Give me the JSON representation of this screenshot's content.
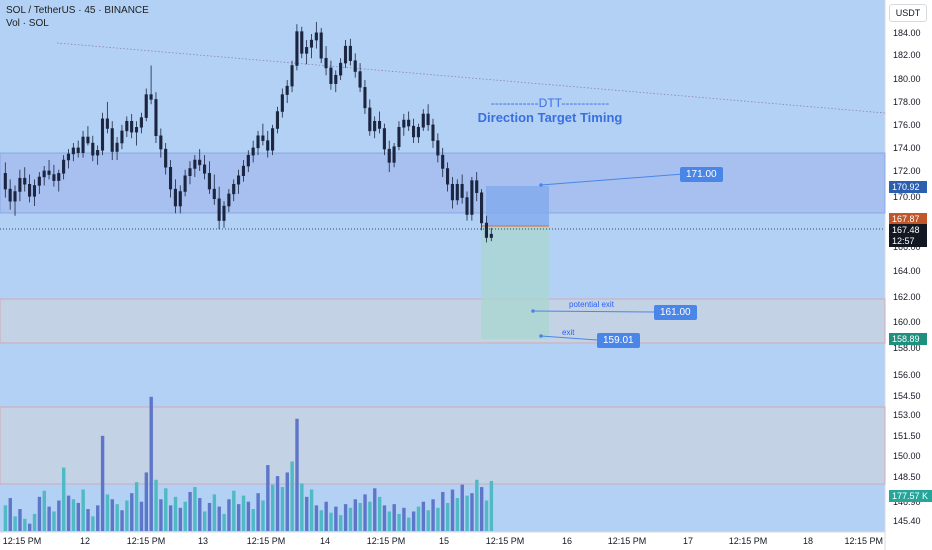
{
  "header": {
    "symbol_line": "SOL / TetherUS · 45 · BINANCE",
    "volume_line": "Vol · SOL",
    "currency": "USDT"
  },
  "annotation": {
    "line1": "------------DTT------------",
    "line2": "Direction Target Timing"
  },
  "targets": {
    "upper": "171.00",
    "potential_exit_label": "potential exit",
    "potential_exit": "161.00",
    "exit_label": "exit",
    "exit": "159.01"
  },
  "price_axis": {
    "labels": [
      "184.00",
      "182.00",
      "180.00",
      "178.00",
      "176.00",
      "174.00",
      "172.00",
      "170.00",
      "166.00",
      "164.00",
      "162.00",
      "160.00",
      "158.00",
      "156.00",
      "154.50",
      "153.00",
      "151.50",
      "150.00",
      "148.50",
      "146.90",
      "145.40"
    ]
  },
  "price_badges": {
    "blue_level": "170.92",
    "orange_level": "167.87",
    "last_price": "167.48",
    "countdown": "12:57",
    "green_level": "158.89",
    "volume": "177.57 K"
  },
  "time_axis": {
    "labels": [
      "12:15 PM",
      "12",
      "12:15 PM",
      "13",
      "12:15 PM",
      "14",
      "12:15 PM",
      "15",
      "12:15 PM",
      "16",
      "12:15 PM",
      "17",
      "12:15 PM",
      "18",
      "12:15 PM"
    ]
  },
  "colors": {
    "background": "#b3d1f5",
    "upper_zone": "#a7c0f0",
    "lower_zone": "#c3d2e5",
    "bull": "#26a69a",
    "bear": "#ef5350",
    "vol_up": "#4fb9c4",
    "vol_down": "#5d76c9",
    "accent": "#4a86e8"
  },
  "chart_data": {
    "type": "candlestick",
    "price_ylim": [
      145.0,
      185.6
    ],
    "price_ticks": [
      184,
      182,
      180,
      178,
      176,
      174,
      172,
      170,
      168,
      166,
      164,
      162,
      160,
      158,
      156
    ],
    "zones": [
      {
        "name": "upper",
        "from": 169.0,
        "to": 173.7
      },
      {
        "name": "lower",
        "from": 158.7,
        "to": 162.0
      },
      {
        "name": "volume",
        "from": 148.4,
        "to": 153.7
      }
    ],
    "position": {
      "entry": 167.87,
      "target": 171.0,
      "stop": 159.01
    },
    "last_price": 167.48,
    "candles": [
      [
        172.5,
        173.4,
        170.5,
        171.2
      ],
      [
        171.2,
        172.0,
        169.5,
        170.2
      ],
      [
        170.2,
        171.5,
        169.0,
        171.0
      ],
      [
        171.0,
        172.8,
        170.2,
        172.1
      ],
      [
        172.1,
        173.0,
        171.0,
        171.6
      ],
      [
        171.6,
        172.4,
        170.1,
        170.6
      ],
      [
        170.6,
        172.0,
        169.8,
        171.5
      ],
      [
        171.5,
        172.6,
        170.8,
        172.2
      ],
      [
        172.2,
        173.1,
        171.5,
        172.7
      ],
      [
        172.7,
        173.6,
        172.0,
        172.4
      ],
      [
        172.4,
        173.2,
        171.4,
        171.9
      ],
      [
        171.9,
        172.8,
        171.0,
        172.5
      ],
      [
        172.5,
        174.0,
        172.0,
        173.6
      ],
      [
        173.6,
        174.5,
        172.9,
        174.1
      ],
      [
        174.1,
        175.0,
        173.5,
        174.6
      ],
      [
        174.6,
        175.2,
        173.8,
        174.2
      ],
      [
        174.2,
        176.0,
        173.8,
        175.5
      ],
      [
        175.5,
        176.4,
        174.8,
        175.0
      ],
      [
        175.0,
        175.6,
        173.5,
        174.0
      ],
      [
        174.0,
        174.8,
        173.2,
        174.4
      ],
      [
        174.4,
        177.5,
        174.0,
        177.0
      ],
      [
        177.0,
        178.4,
        175.8,
        176.2
      ],
      [
        176.2,
        176.8,
        173.6,
        174.3
      ],
      [
        174.3,
        175.5,
        173.6,
        175.0
      ],
      [
        175.0,
        176.5,
        174.5,
        176.0
      ],
      [
        176.0,
        177.2,
        175.5,
        176.8
      ],
      [
        176.8,
        177.4,
        175.4,
        175.9
      ],
      [
        175.9,
        176.8,
        174.8,
        176.3
      ],
      [
        176.3,
        177.5,
        175.8,
        177.1
      ],
      [
        177.1,
        179.5,
        176.8,
        179.0
      ],
      [
        179.0,
        181.4,
        178.2,
        178.6
      ],
      [
        178.6,
        179.2,
        175.0,
        175.6
      ],
      [
        175.6,
        176.2,
        173.8,
        174.5
      ],
      [
        174.5,
        175.0,
        172.4,
        173.0
      ],
      [
        173.0,
        173.6,
        170.5,
        171.2
      ],
      [
        171.2,
        172.0,
        169.2,
        169.8
      ],
      [
        169.8,
        171.5,
        169.2,
        171.0
      ],
      [
        171.0,
        172.8,
        170.6,
        172.3
      ],
      [
        172.3,
        173.5,
        171.6,
        172.9
      ],
      [
        172.9,
        174.0,
        172.2,
        173.6
      ],
      [
        173.6,
        174.5,
        172.7,
        173.2
      ],
      [
        173.2,
        174.0,
        172.0,
        172.5
      ],
      [
        172.5,
        173.5,
        170.8,
        171.2
      ],
      [
        171.2,
        172.4,
        169.9,
        170.4
      ],
      [
        170.4,
        171.4,
        167.9,
        168.6
      ],
      [
        168.6,
        170.2,
        168.0,
        169.8
      ],
      [
        169.8,
        171.2,
        169.3,
        170.8
      ],
      [
        170.8,
        172.0,
        170.2,
        171.6
      ],
      [
        171.6,
        172.8,
        170.8,
        172.3
      ],
      [
        172.3,
        173.6,
        171.8,
        173.1
      ],
      [
        173.1,
        174.4,
        172.6,
        174.0
      ],
      [
        174.0,
        175.2,
        173.4,
        174.6
      ],
      [
        174.6,
        176.0,
        174.0,
        175.6
      ],
      [
        175.6,
        176.6,
        174.8,
        175.2
      ],
      [
        175.2,
        176.0,
        173.8,
        174.4
      ],
      [
        174.4,
        176.5,
        174.0,
        176.2
      ],
      [
        176.2,
        178.0,
        175.8,
        177.6
      ],
      [
        177.6,
        179.5,
        177.1,
        179.0
      ],
      [
        179.0,
        180.2,
        178.3,
        179.7
      ],
      [
        179.7,
        181.8,
        179.2,
        181.4
      ],
      [
        181.4,
        184.8,
        181.0,
        184.2
      ],
      [
        184.2,
        184.6,
        182.0,
        182.4
      ],
      [
        182.4,
        183.5,
        181.5,
        182.9
      ],
      [
        182.9,
        184.0,
        182.0,
        183.5
      ],
      [
        183.5,
        185.0,
        182.8,
        184.1
      ],
      [
        184.1,
        184.5,
        181.6,
        182.0
      ],
      [
        182.0,
        183.0,
        180.6,
        181.2
      ],
      [
        181.2,
        181.8,
        179.4,
        179.9
      ],
      [
        179.9,
        181.0,
        179.2,
        180.6
      ],
      [
        180.6,
        182.0,
        180.2,
        181.6
      ],
      [
        181.6,
        183.5,
        181.2,
        183.0
      ],
      [
        183.0,
        183.6,
        181.4,
        181.8
      ],
      [
        181.8,
        182.4,
        180.4,
        180.9
      ],
      [
        180.9,
        181.6,
        179.2,
        179.6
      ],
      [
        179.6,
        180.2,
        177.4,
        177.9
      ],
      [
        177.9,
        178.6,
        175.6,
        176.0
      ],
      [
        176.0,
        177.2,
        175.4,
        176.8
      ],
      [
        176.8,
        177.6,
        175.8,
        176.2
      ],
      [
        176.2,
        176.6,
        174.0,
        174.5
      ],
      [
        174.5,
        175.2,
        172.6,
        173.4
      ],
      [
        173.4,
        175.0,
        173.0,
        174.7
      ],
      [
        174.7,
        176.8,
        174.4,
        176.3
      ],
      [
        176.3,
        177.4,
        175.6,
        176.9
      ],
      [
        176.9,
        177.6,
        176.0,
        176.4
      ],
      [
        176.4,
        177.0,
        175.0,
        175.5
      ],
      [
        175.5,
        176.6,
        175.0,
        176.3
      ],
      [
        176.3,
        177.8,
        176.0,
        177.4
      ],
      [
        177.4,
        178.2,
        176.0,
        176.5
      ],
      [
        176.5,
        177.0,
        174.6,
        175.2
      ],
      [
        175.2,
        175.8,
        173.4,
        174.0
      ],
      [
        174.0,
        174.6,
        172.2,
        172.9
      ],
      [
        172.9,
        173.4,
        171.0,
        171.6
      ],
      [
        171.6,
        172.2,
        169.6,
        170.3
      ],
      [
        170.3,
        172.0,
        169.9,
        171.6
      ],
      [
        171.6,
        172.4,
        170.0,
        170.5
      ],
      [
        170.5,
        171.0,
        168.6,
        169.1
      ],
      [
        169.1,
        172.2,
        168.6,
        171.9
      ],
      [
        171.9,
        172.6,
        170.2,
        170.9
      ],
      [
        170.9,
        171.2,
        167.8,
        168.4
      ],
      [
        168.4,
        169.0,
        166.8,
        167.2
      ],
      [
        167.2,
        168.0,
        166.9,
        167.48
      ]
    ],
    "volumes": [
      [
        2.1,
        1
      ],
      [
        2.7,
        0
      ],
      [
        1.2,
        1
      ],
      [
        1.8,
        0
      ],
      [
        1.0,
        1
      ],
      [
        0.6,
        0
      ],
      [
        1.4,
        1
      ],
      [
        2.8,
        0
      ],
      [
        3.3,
        1
      ],
      [
        2.0,
        0
      ],
      [
        1.6,
        1
      ],
      [
        2.5,
        0
      ],
      [
        5.2,
        1
      ],
      [
        2.9,
        0
      ],
      [
        2.6,
        1
      ],
      [
        2.3,
        0
      ],
      [
        3.4,
        1
      ],
      [
        1.8,
        0
      ],
      [
        1.2,
        1
      ],
      [
        2.1,
        0
      ],
      [
        7.8,
        0
      ],
      [
        3.0,
        1
      ],
      [
        2.6,
        0
      ],
      [
        2.2,
        1
      ],
      [
        1.7,
        0
      ],
      [
        2.5,
        1
      ],
      [
        3.1,
        0
      ],
      [
        4.0,
        1
      ],
      [
        2.4,
        0
      ],
      [
        4.8,
        0
      ],
      [
        11.0,
        0
      ],
      [
        4.2,
        1
      ],
      [
        2.6,
        0
      ],
      [
        3.5,
        1
      ],
      [
        2.1,
        0
      ],
      [
        2.8,
        1
      ],
      [
        1.9,
        0
      ],
      [
        2.4,
        1
      ],
      [
        3.2,
        0
      ],
      [
        3.6,
        1
      ],
      [
        2.7,
        0
      ],
      [
        1.6,
        1
      ],
      [
        2.3,
        0
      ],
      [
        3.0,
        1
      ],
      [
        2.0,
        0
      ],
      [
        1.4,
        1
      ],
      [
        2.6,
        0
      ],
      [
        3.3,
        1
      ],
      [
        2.2,
        0
      ],
      [
        2.9,
        1
      ],
      [
        2.4,
        0
      ],
      [
        1.8,
        1
      ],
      [
        3.1,
        0
      ],
      [
        2.5,
        1
      ],
      [
        5.4,
        0
      ],
      [
        3.8,
        1
      ],
      [
        4.5,
        0
      ],
      [
        3.6,
        1
      ],
      [
        4.8,
        0
      ],
      [
        5.7,
        1
      ],
      [
        9.2,
        0
      ],
      [
        3.9,
        1
      ],
      [
        2.8,
        0
      ],
      [
        3.4,
        1
      ],
      [
        2.1,
        0
      ],
      [
        1.7,
        1
      ],
      [
        2.4,
        0
      ],
      [
        1.5,
        1
      ],
      [
        2.0,
        0
      ],
      [
        1.3,
        1
      ],
      [
        2.2,
        0
      ],
      [
        1.9,
        1
      ],
      [
        2.6,
        0
      ],
      [
        2.3,
        1
      ],
      [
        3.0,
        0
      ],
      [
        2.4,
        1
      ],
      [
        3.5,
        0
      ],
      [
        2.8,
        1
      ],
      [
        2.1,
        0
      ],
      [
        1.6,
        1
      ],
      [
        2.2,
        0
      ],
      [
        1.4,
        1
      ],
      [
        1.9,
        0
      ],
      [
        1.1,
        1
      ],
      [
        1.6,
        0
      ],
      [
        2.0,
        1
      ],
      [
        2.4,
        0
      ],
      [
        1.7,
        1
      ],
      [
        2.6,
        0
      ],
      [
        1.9,
        1
      ],
      [
        3.2,
        0
      ],
      [
        2.3,
        1
      ],
      [
        3.4,
        0
      ],
      [
        2.7,
        1
      ],
      [
        3.8,
        0
      ],
      [
        2.9,
        1
      ],
      [
        3.1,
        0
      ],
      [
        4.2,
        1
      ],
      [
        3.6,
        0
      ],
      [
        2.5,
        1
      ],
      [
        4.1,
        1
      ]
    ]
  }
}
